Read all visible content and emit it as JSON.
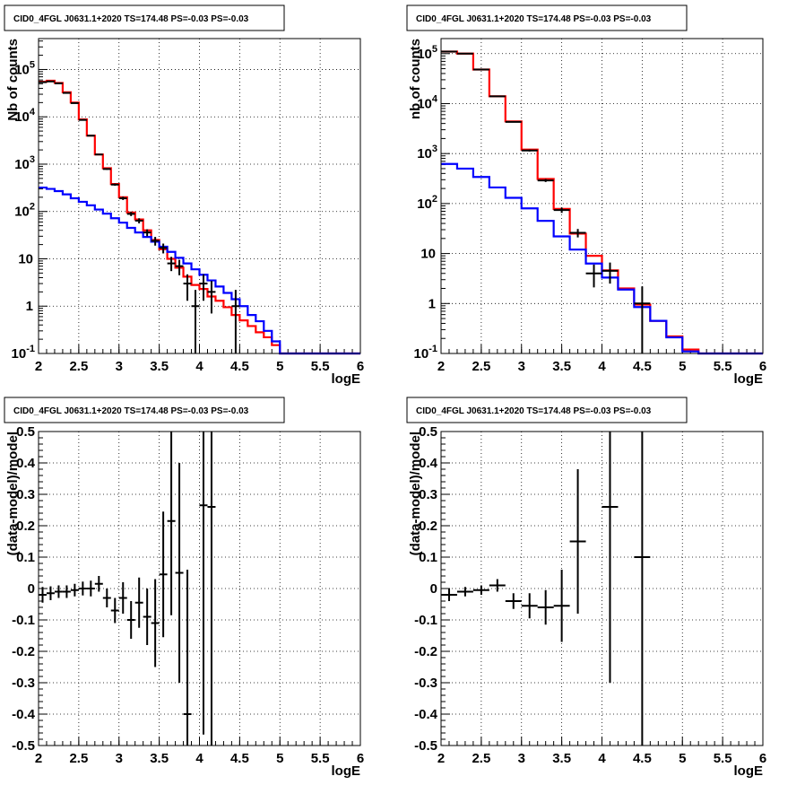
{
  "colors": {
    "data": "#000000",
    "total_model": "#ff0000",
    "background_model": "#0000ff",
    "grid": "#000000"
  },
  "chart_data": [
    {
      "type": "line",
      "title": "CID0_4FGL J0631.1+2020 TS=174.48 PS=-0.03 PS=-0.03",
      "xlabel": "logE",
      "ylabel": "Nb of counts",
      "xlim": [
        2,
        6
      ],
      "ylim": [
        0.1,
        450000
      ],
      "yscale": "log",
      "xticks": [
        "2",
        "2.5",
        "3",
        "3.5",
        "4",
        "4.5",
        "5",
        "5.5",
        "6"
      ],
      "yticks": [
        "10^-1",
        "1",
        "10",
        "10^2",
        "10^3",
        "10^4",
        "10^5"
      ],
      "grid": true,
      "bin_edges": [
        2.0,
        2.1,
        2.2,
        2.3,
        2.4,
        2.5,
        2.6,
        2.7,
        2.8,
        2.9,
        3.0,
        3.1,
        3.2,
        3.3,
        3.4,
        3.5,
        3.6,
        3.7,
        3.8,
        3.9,
        4.0,
        4.1,
        4.2,
        4.3,
        4.4,
        4.5,
        4.6,
        4.7,
        4.8,
        4.9,
        5.0,
        5.1,
        5.2,
        5.3,
        5.4,
        5.5,
        5.6,
        5.7,
        5.8,
        5.9,
        6.0
      ],
      "series": [
        {
          "kind": "hist",
          "color": "#ff0000",
          "values": [
            55000,
            58000,
            52000,
            33000,
            20000,
            8800,
            4000,
            1600,
            820,
            380,
            200,
            95,
            68,
            40,
            25,
            16,
            10,
            6.5,
            4.2,
            2.8,
            2.3,
            1.6,
            1.3,
            0.95,
            0.65,
            0.5,
            0.38,
            0.28,
            0.22,
            0.15,
            0.1,
            0.1,
            0.1,
            0.1,
            0.1,
            0.1,
            0.1,
            0.1,
            0.1,
            0.1
          ]
        },
        {
          "kind": "hist",
          "color": "#0000ff",
          "values": [
            320,
            300,
            270,
            230,
            190,
            160,
            135,
            110,
            90,
            72,
            58,
            45,
            36,
            29,
            23,
            18,
            14,
            10.5,
            8,
            6,
            4.6,
            3.5,
            2.6,
            1.9,
            1.4,
            1.0,
            0.65,
            0.48,
            0.3,
            0.18,
            0.1,
            0.1,
            0.1,
            0.1,
            0.1,
            0.1,
            0.1,
            0.1,
            0.1,
            0.1
          ]
        },
        {
          "kind": "points",
          "color": "#000000",
          "points": [
            {
              "x": 2.05,
              "y": 54000,
              "lo": 53000,
              "hi": 55000
            },
            {
              "x": 2.15,
              "y": 56000,
              "lo": 55000,
              "hi": 57000
            },
            {
              "x": 2.25,
              "y": 51000,
              "lo": 50000,
              "hi": 52000
            },
            {
              "x": 2.35,
              "y": 32000,
              "lo": 31500,
              "hi": 32500
            },
            {
              "x": 2.45,
              "y": 19500,
              "lo": 19000,
              "hi": 20000
            },
            {
              "x": 2.55,
              "y": 8600,
              "lo": 8400,
              "hi": 8800
            },
            {
              "x": 2.65,
              "y": 4000,
              "lo": 3900,
              "hi": 4100
            },
            {
              "x": 2.75,
              "y": 1600,
              "lo": 1550,
              "hi": 1650
            },
            {
              "x": 2.85,
              "y": 790,
              "lo": 760,
              "hi": 820
            },
            {
              "x": 2.95,
              "y": 370,
              "lo": 350,
              "hi": 390
            },
            {
              "x": 3.05,
              "y": 190,
              "lo": 175,
              "hi": 205
            },
            {
              "x": 3.15,
              "y": 89,
              "lo": 80,
              "hi": 98
            },
            {
              "x": 3.25,
              "y": 64,
              "lo": 56,
              "hi": 72
            },
            {
              "x": 3.35,
              "y": 36,
              "lo": 30,
              "hi": 42
            },
            {
              "x": 3.45,
              "y": 24,
              "lo": 19,
              "hi": 29
            },
            {
              "x": 3.55,
              "y": 17,
              "lo": 13,
              "hi": 21
            },
            {
              "x": 3.65,
              "y": 8,
              "lo": 5.5,
              "hi": 11
            },
            {
              "x": 3.75,
              "y": 7,
              "lo": 4.5,
              "hi": 9.5
            },
            {
              "x": 3.85,
              "y": 3,
              "lo": 1.3,
              "hi": 4.7
            },
            {
              "x": 3.95,
              "y": 1,
              "lo": 0.1,
              "hi": 2.2
            },
            {
              "x": 4.05,
              "y": 3,
              "lo": 1.3,
              "hi": 4.7
            },
            {
              "x": 4.15,
              "y": 2,
              "lo": 0.7,
              "hi": 3.4
            },
            {
              "x": 4.45,
              "y": 1,
              "lo": 0.1,
              "hi": 2.2
            }
          ]
        }
      ]
    },
    {
      "type": "line",
      "title": "CID0_4FGL J0631.1+2020 TS=174.48 PS=-0.03 PS=-0.03",
      "xlabel": "logE",
      "ylabel": "nb of counts",
      "xlim": [
        2,
        6
      ],
      "ylim": [
        0.1,
        200000
      ],
      "yscale": "log",
      "xticks": [
        "2",
        "2.5",
        "3",
        "3.5",
        "4",
        "4.5",
        "5",
        "5.5",
        "6"
      ],
      "yticks": [
        "10^-1",
        "1",
        "10",
        "10^2",
        "10^3",
        "10^4",
        "10^5"
      ],
      "grid": true,
      "bin_edges": [
        2.0,
        2.2,
        2.4,
        2.6,
        2.8,
        3.0,
        3.2,
        3.4,
        3.6,
        3.8,
        4.0,
        4.2,
        4.4,
        4.6,
        4.8,
        5.0,
        5.2,
        5.4,
        5.6,
        5.8,
        6.0
      ],
      "series": [
        {
          "kind": "hist",
          "color": "#ff0000",
          "values": [
            110000,
            100000,
            48000,
            14000,
            4400,
            1200,
            310,
            78,
            25,
            9,
            4.6,
            2,
            0.95,
            0.45,
            0.22,
            0.12,
            0.1,
            0.1,
            0.1,
            0.1
          ]
        },
        {
          "kind": "hist",
          "color": "#0000ff",
          "values": [
            620,
            500,
            340,
            210,
            130,
            80,
            45,
            22,
            12,
            6.3,
            3.3,
            1.9,
            0.85,
            0.45,
            0.21,
            0.11,
            0.1,
            0.1,
            0.1,
            0.1
          ]
        },
        {
          "kind": "points",
          "color": "#000000",
          "points": [
            {
              "x": 2.1,
              "y": 110000,
              "lo": 109000,
              "hi": 111000
            },
            {
              "x": 2.3,
              "y": 100000,
              "lo": 99000,
              "hi": 101000
            },
            {
              "x": 2.5,
              "y": 48000,
              "lo": 47500,
              "hi": 48500
            },
            {
              "x": 2.7,
              "y": 14000,
              "lo": 13800,
              "hi": 14200
            },
            {
              "x": 2.9,
              "y": 4300,
              "lo": 4200,
              "hi": 4400
            },
            {
              "x": 3.1,
              "y": 1150,
              "lo": 1100,
              "hi": 1200
            },
            {
              "x": 3.3,
              "y": 290,
              "lo": 270,
              "hi": 310
            },
            {
              "x": 3.5,
              "y": 74,
              "lo": 65,
              "hi": 83
            },
            {
              "x": 3.7,
              "y": 26,
              "lo": 21,
              "hi": 31
            },
            {
              "x": 3.9,
              "y": 4,
              "lo": 2.1,
              "hi": 6
            },
            {
              "x": 4.1,
              "y": 4.5,
              "lo": 2.5,
              "hi": 6.6
            },
            {
              "x": 4.5,
              "y": 1,
              "lo": 0.1,
              "hi": 2.2
            }
          ]
        }
      ]
    },
    {
      "type": "scatter",
      "title": "CID0_4FGL J0631.1+2020 TS=174.48 PS=-0.03 PS=-0.03",
      "xlabel": "logE",
      "ylabel": "(data-model)/model",
      "xlim": [
        2,
        6
      ],
      "ylim": [
        -0.5,
        0.5
      ],
      "xticks": [
        "2",
        "2.5",
        "3",
        "3.5",
        "4",
        "4.5",
        "5",
        "5.5",
        "6"
      ],
      "yticks": [
        "-0.5",
        "-0.4",
        "-0.3",
        "-0.2",
        "-0.1",
        "0",
        "0.1",
        "0.2",
        "0.3",
        "0.4",
        "0.5"
      ],
      "grid": true,
      "bin_width": 0.1,
      "points": [
        {
          "x": 2.05,
          "y": -0.02,
          "err": 0.025
        },
        {
          "x": 2.15,
          "y": -0.015,
          "err": 0.022
        },
        {
          "x": 2.25,
          "y": -0.01,
          "err": 0.02
        },
        {
          "x": 2.35,
          "y": -0.01,
          "err": 0.02
        },
        {
          "x": 2.45,
          "y": -0.005,
          "err": 0.02
        },
        {
          "x": 2.55,
          "y": 0.0,
          "err": 0.022
        },
        {
          "x": 2.65,
          "y": 0.0,
          "err": 0.025
        },
        {
          "x": 2.75,
          "y": 0.015,
          "err": 0.025
        },
        {
          "x": 2.85,
          "y": -0.03,
          "err": 0.03
        },
        {
          "x": 2.95,
          "y": -0.07,
          "err": 0.04
        },
        {
          "x": 3.05,
          "y": -0.03,
          "err": 0.05
        },
        {
          "x": 3.15,
          "y": -0.1,
          "err": 0.06
        },
        {
          "x": 3.25,
          "y": -0.045,
          "err": 0.08
        },
        {
          "x": 3.35,
          "y": -0.09,
          "err": 0.09
        },
        {
          "x": 3.45,
          "y": -0.11,
          "err": 0.14
        },
        {
          "x": 3.55,
          "y": 0.045,
          "err": 0.2
        },
        {
          "x": 3.65,
          "y": 0.215,
          "err": 0.3
        },
        {
          "x": 3.75,
          "y": 0.05,
          "err": 0.35
        },
        {
          "x": 3.85,
          "y": -0.4,
          "err": 0.46
        },
        {
          "x": 4.05,
          "y": 0.265,
          "err": 0.73
        },
        {
          "x": 4.15,
          "y": 0.26,
          "err": 0.76
        }
      ]
    },
    {
      "type": "scatter",
      "title": "CID0_4FGL J0631.1+2020 TS=174.48 PS=-0.03 PS=-0.03",
      "xlabel": "logE",
      "ylabel": "(data-model)/model",
      "xlim": [
        2,
        6
      ],
      "ylim": [
        -0.5,
        0.5
      ],
      "xticks": [
        "2",
        "2.5",
        "3",
        "3.5",
        "4",
        "4.5",
        "5",
        "5.5",
        "6"
      ],
      "yticks": [
        "-0.5",
        "-0.4",
        "-0.3",
        "-0.2",
        "-0.1",
        "0",
        "0.1",
        "0.2",
        "0.3",
        "0.4",
        "0.5"
      ],
      "grid": true,
      "bin_width": 0.2,
      "points": [
        {
          "x": 2.1,
          "y": -0.02,
          "err": 0.02
        },
        {
          "x": 2.3,
          "y": -0.01,
          "err": 0.015
        },
        {
          "x": 2.5,
          "y": -0.005,
          "err": 0.015
        },
        {
          "x": 2.7,
          "y": 0.01,
          "err": 0.02
        },
        {
          "x": 2.9,
          "y": -0.04,
          "err": 0.025
        },
        {
          "x": 3.1,
          "y": -0.055,
          "err": 0.04
        },
        {
          "x": 3.3,
          "y": -0.06,
          "err": 0.055
        },
        {
          "x": 3.5,
          "y": -0.055,
          "err": 0.115
        },
        {
          "x": 3.7,
          "y": 0.15,
          "err": 0.23
        },
        {
          "x": 4.1,
          "y": 0.26,
          "err": 0.56
        },
        {
          "x": 4.5,
          "y": 0.1,
          "err": 0.8
        }
      ]
    }
  ]
}
